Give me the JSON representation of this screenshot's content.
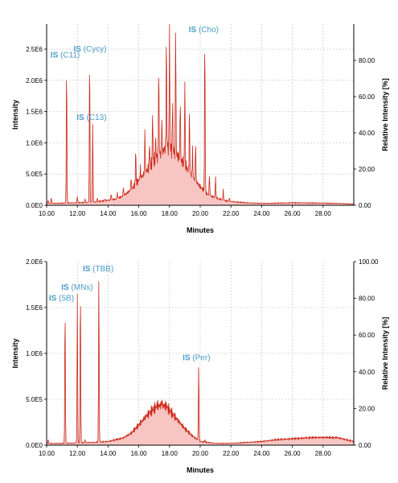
{
  "chart_data": [
    {
      "type": "line",
      "xlabel": "Minutes",
      "ylabel": "Intensity",
      "y2label": "Relative Intensity [%]",
      "xlim": [
        10.0,
        30.0
      ],
      "ylim": [
        0,
        2900000
      ],
      "y2lim": [
        0,
        100
      ],
      "x_ticks": [
        "10.00",
        "12.00",
        "14.00",
        "16.00",
        "18.00",
        "20.00",
        "22.00",
        "24.00",
        "26.00",
        "28.00"
      ],
      "y_ticks": [
        "0.0E0",
        "5.0E5",
        "1.0E6",
        "1.5E6",
        "2.0E6",
        "2.5E6"
      ],
      "y2_ticks": [
        "0.00",
        "20.00",
        "40.00",
        "60.00",
        "80.00"
      ],
      "grid": true,
      "color": "#cc2a1c",
      "fill": "#f7c6c3",
      "envelope": [
        [
          10.0,
          30000
        ],
        [
          11.0,
          35000
        ],
        [
          12.0,
          40000
        ],
        [
          13.0,
          50000
        ],
        [
          14.0,
          80000
        ],
        [
          14.5,
          100000
        ],
        [
          15.0,
          150000
        ],
        [
          15.5,
          250000
        ],
        [
          16.0,
          400000
        ],
        [
          16.5,
          550000
        ],
        [
          17.0,
          720000
        ],
        [
          17.5,
          850000
        ],
        [
          17.8,
          950000
        ],
        [
          18.0,
          920000
        ],
        [
          18.5,
          800000
        ],
        [
          19.0,
          650000
        ],
        [
          19.5,
          450000
        ],
        [
          20.0,
          300000
        ],
        [
          20.5,
          170000
        ],
        [
          21.0,
          120000
        ],
        [
          21.5,
          80000
        ],
        [
          22.0,
          60000
        ],
        [
          23.0,
          40000
        ],
        [
          24.0,
          30000
        ],
        [
          26.0,
          40000
        ],
        [
          28.0,
          35000
        ],
        [
          29.0,
          30000
        ],
        [
          30.0,
          20000
        ]
      ],
      "peaks": [
        [
          10.1,
          80000
        ],
        [
          10.3,
          120000
        ],
        [
          11.3,
          2300000
        ],
        [
          12.0,
          140000
        ],
        [
          12.5,
          100000
        ],
        [
          12.8,
          2400000
        ],
        [
          13.0,
          1300000
        ],
        [
          13.3,
          120000
        ],
        [
          13.8,
          100000
        ],
        [
          14.2,
          180000
        ],
        [
          14.6,
          200000
        ],
        [
          15.0,
          300000
        ],
        [
          15.5,
          450000
        ],
        [
          15.8,
          900000
        ],
        [
          16.1,
          600000
        ],
        [
          16.4,
          1200000
        ],
        [
          16.7,
          1000000
        ],
        [
          16.9,
          1500000
        ],
        [
          17.1,
          1100000
        ],
        [
          17.3,
          2200000
        ],
        [
          17.5,
          1400000
        ],
        [
          17.8,
          2700000
        ],
        [
          18.0,
          2900000
        ],
        [
          18.2,
          1700000
        ],
        [
          18.4,
          2900000
        ],
        [
          18.7,
          1700000
        ],
        [
          19.0,
          2000000
        ],
        [
          19.3,
          1500000
        ],
        [
          19.5,
          900000
        ],
        [
          19.7,
          1000000
        ],
        [
          20.3,
          2750000
        ],
        [
          20.6,
          500000
        ],
        [
          21.0,
          450000
        ],
        [
          21.5,
          250000
        ],
        [
          21.9,
          120000
        ]
      ],
      "annotations": [
        {
          "prefix": "IS",
          "text": " (C11)",
          "x": 11.3
        },
        {
          "prefix": "IS",
          "text": " (Cycy)",
          "x": 12.8
        },
        {
          "prefix": "IS",
          "text": " (C13)",
          "x": 13.0
        },
        {
          "prefix": "IS",
          "text": " (Cho)",
          "x": 20.3
        }
      ]
    },
    {
      "type": "line",
      "xlabel": "Minutes",
      "ylabel": "Intensity",
      "y2label": "Relative Intensity [%]",
      "xlim": [
        10.0,
        30.0
      ],
      "ylim": [
        0,
        2000000
      ],
      "y2lim": [
        0,
        100
      ],
      "x_ticks": [
        "10.00",
        "12.00",
        "14.00",
        "16.00",
        "18.00",
        "20.00",
        "22.00",
        "24.00",
        "26.00",
        "28.00"
      ],
      "y_ticks": [
        "0.0E0",
        "5.0E5",
        "1.0E6",
        "1.5E6",
        "2.0E6"
      ],
      "y2_ticks": [
        "0.00",
        "20.00",
        "40.00",
        "60.00",
        "80.00",
        "100.00"
      ],
      "grid": true,
      "color": "#cc2a1c",
      "fill": "#f7c6c3",
      "envelope": [
        [
          10.0,
          20000
        ],
        [
          11.0,
          20000
        ],
        [
          12.0,
          25000
        ],
        [
          13.0,
          30000
        ],
        [
          14.0,
          40000
        ],
        [
          15.0,
          80000
        ],
        [
          15.5,
          130000
        ],
        [
          16.0,
          220000
        ],
        [
          16.5,
          320000
        ],
        [
          17.0,
          400000
        ],
        [
          17.3,
          430000
        ],
        [
          17.5,
          440000
        ],
        [
          17.8,
          420000
        ],
        [
          18.0,
          380000
        ],
        [
          18.5,
          280000
        ],
        [
          19.0,
          180000
        ],
        [
          19.5,
          100000
        ],
        [
          20.0,
          40000
        ],
        [
          21.0,
          20000
        ],
        [
          22.0,
          20000
        ],
        [
          23.0,
          30000
        ],
        [
          24.0,
          40000
        ],
        [
          25.0,
          60000
        ],
        [
          26.0,
          70000
        ],
        [
          27.0,
          80000
        ],
        [
          28.0,
          85000
        ],
        [
          29.0,
          80000
        ],
        [
          30.0,
          40000
        ]
      ],
      "peaks": [
        [
          10.1,
          60000
        ],
        [
          11.2,
          1530000
        ],
        [
          12.0,
          1650000
        ],
        [
          12.2,
          1740000
        ],
        [
          12.5,
          60000
        ],
        [
          13.4,
          1850000
        ],
        [
          14.0,
          40000
        ],
        [
          17.2,
          450000
        ],
        [
          17.5,
          480000
        ],
        [
          17.8,
          440000
        ],
        [
          19.9,
          880000
        ],
        [
          20.3,
          60000
        ]
      ],
      "annotations": [
        {
          "prefix": "IS",
          "text": " (5B)",
          "x": 11.2
        },
        {
          "prefix": "IS",
          "text": " (MNs)",
          "x": 12.0
        },
        {
          "prefix": "IS",
          "text": " (TBB)",
          "x": 13.4
        },
        {
          "prefix": "IS",
          "text": " (Per)",
          "x": 19.9
        }
      ]
    }
  ]
}
